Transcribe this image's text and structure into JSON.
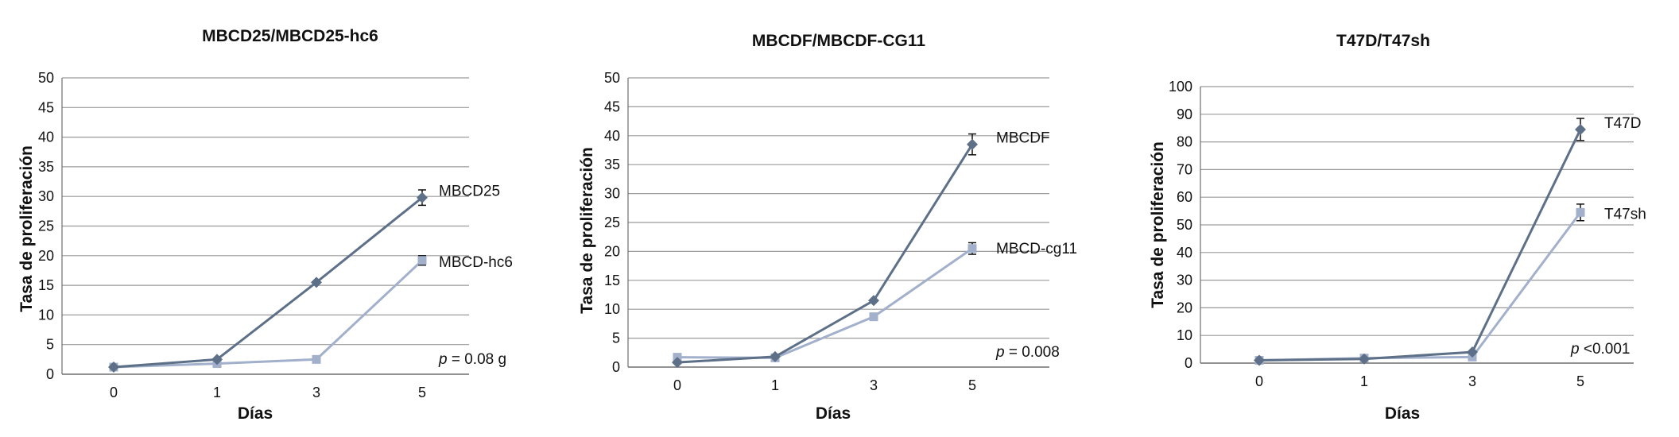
{
  "chart_data": [
    {
      "type": "line",
      "title": "MBCD25/MBCD25-hc6",
      "xlabel": "Días",
      "ylabel": "Tasa de proliferación",
      "categories": [
        "0",
        "1",
        "3",
        "5"
      ],
      "ylim": [
        0,
        50
      ],
      "yticks": [
        "0",
        "5",
        "10",
        "15",
        "20",
        "25",
        "30",
        "35",
        "40",
        "45",
        "50"
      ],
      "grid": true,
      "series": [
        {
          "name": "MBCD25",
          "values": [
            1.2,
            2.5,
            15.5,
            29.8
          ],
          "error": [
            0,
            0,
            0,
            1.3
          ],
          "marker": "diamond",
          "color": "#5e7088"
        },
        {
          "name": "MBCD-hc6",
          "values": [
            1.2,
            1.8,
            2.5,
            19.2
          ],
          "error": [
            0,
            0,
            0,
            0.8
          ],
          "marker": "square",
          "color": "#a2b0cc"
        }
      ],
      "annotation": {
        "p": "p",
        "rest": " = 0.08 g"
      }
    },
    {
      "type": "line",
      "title": "MBCDF/MBCDF-CG11",
      "xlabel": "Días",
      "ylabel": "Tasa de proliferación",
      "categories": [
        "0",
        "1",
        "3",
        "5"
      ],
      "ylim": [
        0,
        50
      ],
      "yticks": [
        "0",
        "5",
        "10",
        "15",
        "20",
        "25",
        "30",
        "35",
        "40",
        "45",
        "50"
      ],
      "grid": true,
      "series": [
        {
          "name": "MBCDF",
          "values": [
            0.8,
            1.8,
            11.5,
            38.5
          ],
          "error": [
            0,
            0,
            0,
            1.8
          ],
          "marker": "diamond",
          "color": "#5e7088"
        },
        {
          "name": "MBCD-cg11",
          "values": [
            1.7,
            1.6,
            8.7,
            20.5
          ],
          "error": [
            0,
            0,
            0,
            1.0
          ],
          "marker": "square",
          "color": "#a2b0cc"
        }
      ],
      "annotation": {
        "p": "p",
        "rest": " = 0.008"
      }
    },
    {
      "type": "line",
      "title": "T47D/T47sh",
      "xlabel": "Días",
      "ylabel": "Tasa de proliferación",
      "categories": [
        "0",
        "1",
        "3",
        "5"
      ],
      "ylim": [
        0,
        100
      ],
      "yticks": [
        "0",
        "10",
        "20",
        "30",
        "40",
        "50",
        "60",
        "70",
        "80",
        "90",
        "100"
      ],
      "grid": true,
      "series": [
        {
          "name": "T47D",
          "values": [
            1.0,
            1.5,
            4.0,
            84.5
          ],
          "error": [
            0,
            0,
            0,
            4.0
          ],
          "marker": "diamond",
          "color": "#5e7088"
        },
        {
          "name": "T47sh",
          "values": [
            1.0,
            1.8,
            2.2,
            54.5
          ],
          "error": [
            0,
            0,
            0,
            3.0
          ],
          "marker": "square",
          "color": "#a2b0cc"
        }
      ],
      "annotation": {
        "p": "p",
        "rest": " <0.001"
      }
    }
  ]
}
